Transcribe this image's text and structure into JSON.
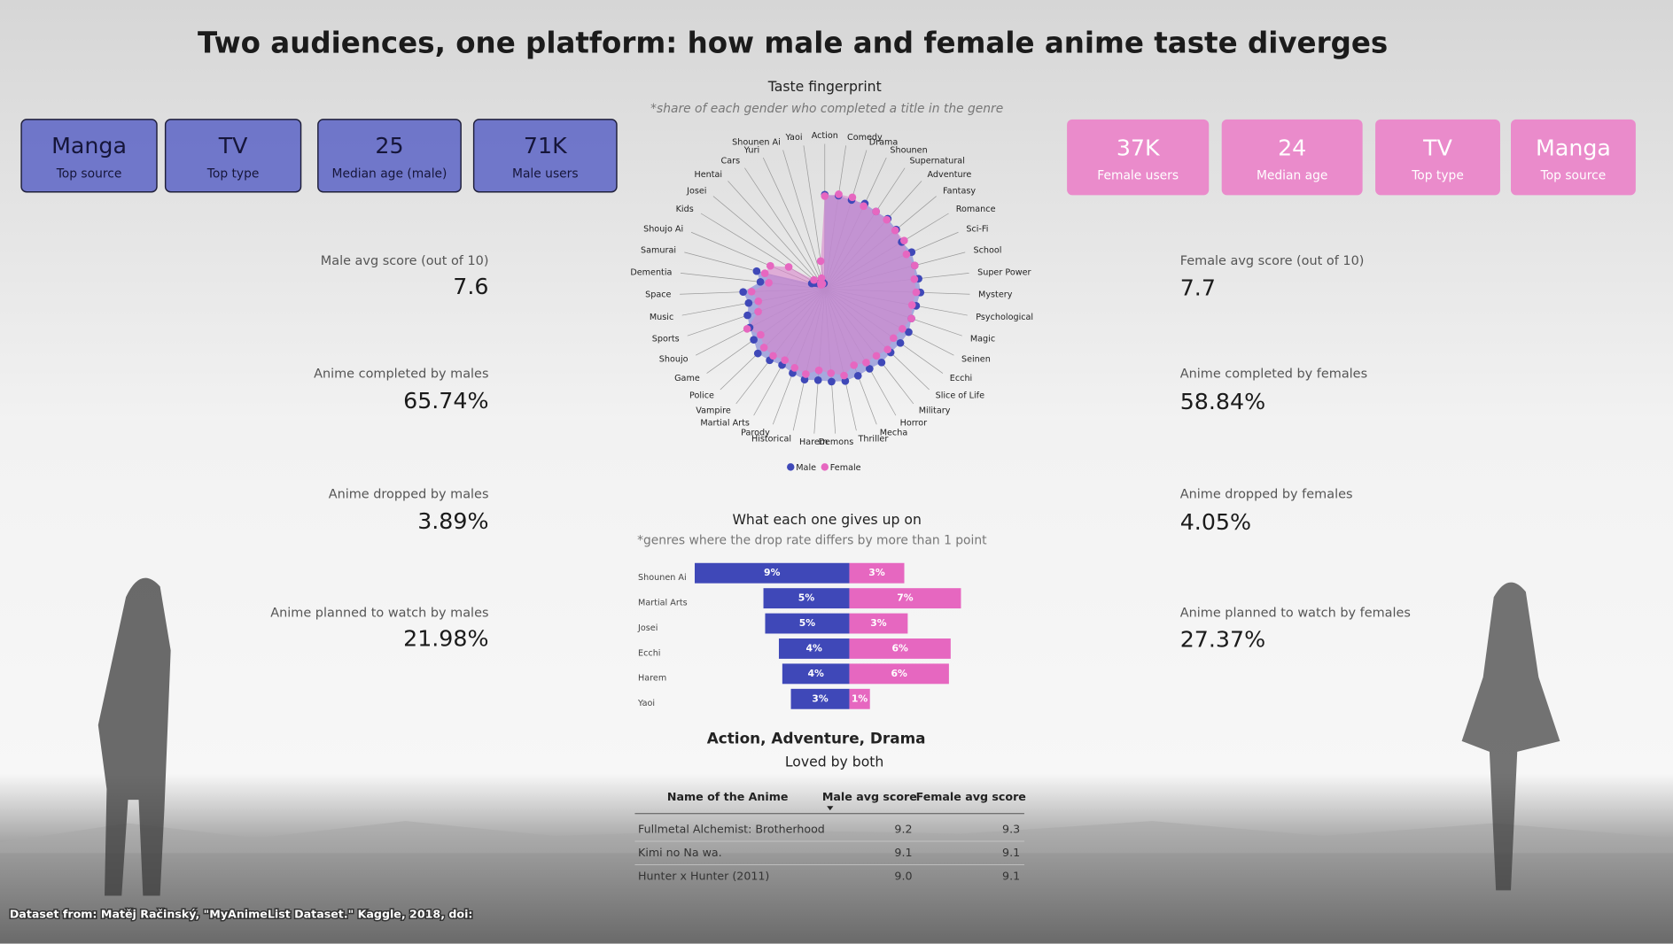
{
  "header": {
    "title": "Two audiences, one platform: how male and female anime taste diverges"
  },
  "male_cards": [
    {
      "value": "Manga",
      "label": "Top source"
    },
    {
      "value": "TV",
      "label": "Top type"
    },
    {
      "value": "25",
      "label": "Median age (male)"
    },
    {
      "value": "71K",
      "label": "Male users"
    }
  ],
  "female_cards": [
    {
      "value": "37K",
      "label": "Female users"
    },
    {
      "value": "24",
      "label": "Median age"
    },
    {
      "value": "TV",
      "label": "Top type"
    },
    {
      "value": "Manga",
      "label": "Top source"
    }
  ],
  "male_stats": [
    {
      "label": "Male avg score (out of 10)",
      "value": "7.6"
    },
    {
      "label": "Anime completed by males",
      "value": "65.74%"
    },
    {
      "label": "Anime dropped by males",
      "value": "3.89%"
    },
    {
      "label": "Anime planned to watch by males",
      "value": "21.98%"
    }
  ],
  "female_stats": [
    {
      "label": "Female avg score (out of 10)",
      "value": "7.7"
    },
    {
      "label": "Anime completed by females",
      "value": "58.84%"
    },
    {
      "label": "Anime dropped by females",
      "value": "4.05%"
    },
    {
      "label": "Anime planned to watch by females",
      "value": "27.37%"
    }
  ],
  "chart_data": [
    {
      "type": "radar",
      "title": "Taste fingerprint",
      "subtitle": "*share of each gender who completed a title in the genre",
      "categories": [
        "Action",
        "Comedy",
        "Drama",
        "Shounen",
        "Supernatural",
        "Adventure",
        "Fantasy",
        "Romance",
        "Sci-Fi",
        "School",
        "Super Power",
        "Mystery",
        "Psychological",
        "Magic",
        "Seinen",
        "Ecchi",
        "Slice of Life",
        "Military",
        "Horror",
        "Mecha",
        "Thriller",
        "Demons",
        "Harem",
        "Historical",
        "Parody",
        "Martial Arts",
        "Vampire",
        "Police",
        "Game",
        "Shoujo",
        "Sports",
        "Music",
        "Space",
        "Dementia",
        "Samurai",
        "Shoujo Ai",
        "Kids",
        "Josei",
        "Hentai",
        "Cars",
        "Yuri",
        "Shounen Ai",
        "Yaoi"
      ],
      "series": [
        {
          "name": "Male",
          "color": "#3f48b8",
          "values": [
            67,
            67,
            66,
            67,
            66,
            67,
            66,
            64,
            67,
            66,
            67,
            68,
            66,
            65,
            67,
            66,
            65,
            66,
            65,
            66,
            67,
            66,
            65,
            66,
            64,
            62,
            64,
            66,
            62,
            60,
            58,
            55,
            58,
            46,
            50,
            10,
            8,
            6,
            5,
            4,
            6,
            5,
            4
          ]
        },
        {
          "name": "Female",
          "color": "#e667c0",
          "values": [
            66,
            68,
            68,
            65,
            66,
            66,
            65,
            66,
            63,
            66,
            64,
            65,
            63,
            65,
            62,
            60,
            62,
            60,
            60,
            58,
            63,
            60,
            58,
            62,
            60,
            58,
            60,
            60,
            56,
            62,
            50,
            48,
            52,
            40,
            44,
            42,
            30,
            10,
            4,
            5,
            4,
            8,
            20
          ]
        }
      ],
      "rlim": [
        0,
        100
      ]
    },
    {
      "type": "diverging-bar",
      "title": "What each one gives up on",
      "subtitle": "*genres where the drop rate differs by more than 1 point",
      "categories": [
        "Shounen Ai",
        "Martial Arts",
        "Josei",
        "Ecchi",
        "Harem",
        "Yaoi"
      ],
      "series": [
        {
          "color": "#3f48b8",
          "values": [
            9.0,
            5.0,
            4.9,
            4.1,
            3.9,
            3.4
          ],
          "value_labels": [
            "9%",
            "5%",
            "5%",
            "4%",
            "4%",
            "3%"
          ]
        },
        {
          "color": "#e667c0",
          "values": [
            3.2,
            6.5,
            3.4,
            5.9,
            5.8,
            1.2
          ],
          "value_labels": [
            "3%",
            "7%",
            "3%",
            "6%",
            "6%",
            "1%"
          ]
        }
      ],
      "xlim": [
        0,
        10
      ]
    }
  ],
  "highlight": {
    "title": "Action, Adventure, Drama",
    "subtitle": "Loved by both"
  },
  "table": {
    "columns": [
      "Name of the Anime",
      "Male avg score",
      "Female avg score"
    ],
    "rows": [
      [
        "Fullmetal Alchemist: Brotherhood",
        "9.2",
        "9.3"
      ],
      [
        "Kimi no Na wa.",
        "9.1",
        "9.1"
      ],
      [
        "Hunter x Hunter (2011)",
        "9.0",
        "9.1"
      ]
    ]
  },
  "footer": {
    "source": "Dataset from: Matěj Račinský, \"MyAnimeList Dataset.\" Kaggle, 2018, doi:"
  }
}
